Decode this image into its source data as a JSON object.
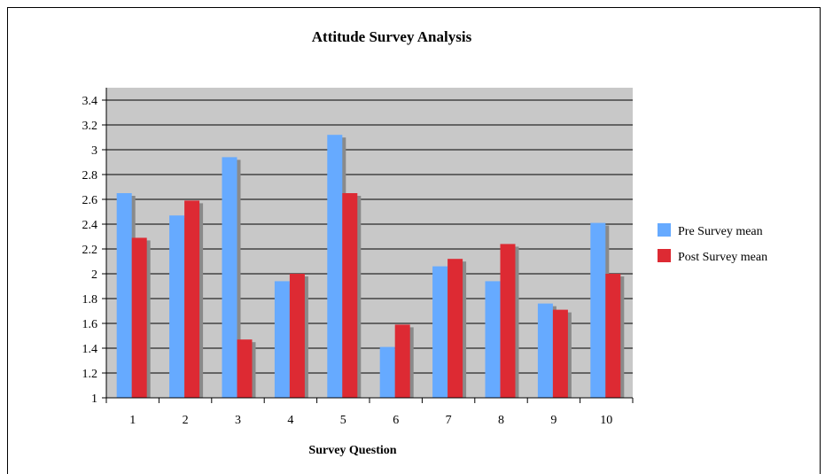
{
  "chart_data": {
    "type": "bar",
    "title": "Attitude Survey Analysis",
    "xlabel": "Survey Question",
    "ylabel": "",
    "ylim": [
      1,
      3.4
    ],
    "yticks": [
      "1",
      "1.2",
      "1.4",
      "1.6",
      "1.8",
      "2",
      "2.2",
      "2.4",
      "2.6",
      "2.8",
      "3",
      "3.2",
      "3.4"
    ],
    "categories": [
      "1",
      "2",
      "3",
      "4",
      "5",
      "6",
      "7",
      "8",
      "9",
      "10"
    ],
    "grid": true,
    "legend_position": "right",
    "series": [
      {
        "name": "Pre Survey mean",
        "color": "#66aaff",
        "values": [
          2.65,
          2.47,
          2.94,
          1.94,
          3.12,
          1.41,
          2.06,
          1.94,
          1.76,
          2.41
        ]
      },
      {
        "name": "Post Survey mean",
        "color": "#dd2a33",
        "values": [
          2.29,
          2.59,
          1.47,
          2.0,
          2.65,
          1.59,
          2.12,
          2.24,
          1.71,
          2.0
        ]
      }
    ]
  }
}
